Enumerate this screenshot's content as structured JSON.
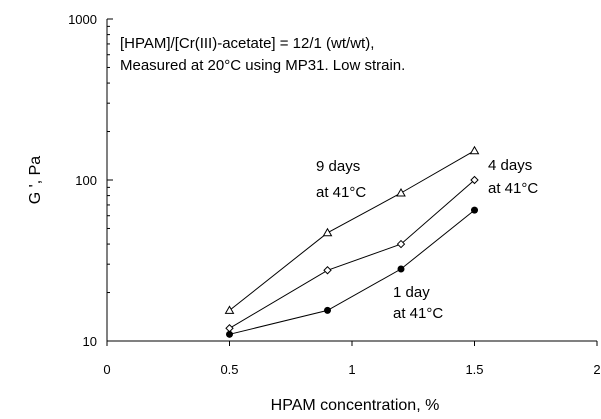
{
  "chart_data": {
    "type": "line",
    "xlabel": "HPAM concentration, %",
    "ylabel": "G ', Pa",
    "xlim": [
      0,
      2
    ],
    "ylim": [
      10,
      1000
    ],
    "yscale": "log",
    "grid": false,
    "x_ticks": [
      0,
      0.5,
      1,
      1.5,
      2
    ],
    "x_tick_labels": [
      "0",
      "0.5",
      "1",
      "1.5",
      "2"
    ],
    "y_ticks": [
      10,
      100,
      1000
    ],
    "y_tick_labels": [
      "10",
      "100",
      "1000"
    ],
    "annotations": [
      "[HPAM]/[Cr(III)-acetate] = 12/1 (wt/wt),",
      "Measured at 20°C using MP31. Low strain."
    ],
    "series": [
      {
        "name": "9 days at 41°C",
        "label_lines": [
          "9 days",
          "at 41°C"
        ],
        "marker": "triangle-open",
        "x": [
          0.5,
          0.9,
          1.2,
          1.5
        ],
        "y": [
          15.5,
          47,
          83,
          152
        ]
      },
      {
        "name": "4 days at 41°C",
        "label_lines": [
          "4 days",
          "at 41°C"
        ],
        "marker": "diamond-open",
        "x": [
          0.5,
          0.9,
          1.2,
          1.5
        ],
        "y": [
          12,
          27.5,
          40,
          100
        ]
      },
      {
        "name": "1 day at 41°C",
        "label_lines": [
          "1 day",
          "at 41°C"
        ],
        "marker": "circle-filled",
        "x": [
          0.5,
          0.9,
          1.2,
          1.5
        ],
        "y": [
          11,
          15.5,
          28,
          65
        ]
      }
    ]
  }
}
